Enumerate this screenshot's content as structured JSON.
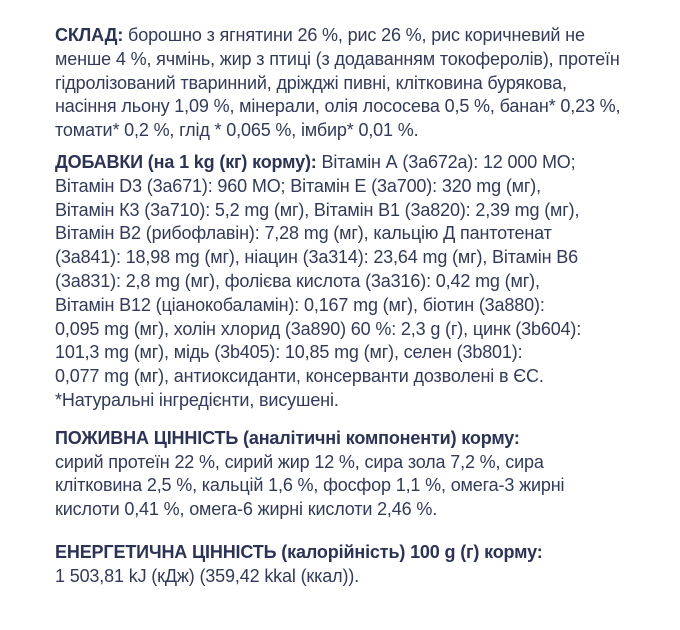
{
  "page": {
    "background_color": "#ffffff",
    "text_color": "#323a58",
    "heading_color": "#2c3354",
    "language": "uk"
  },
  "sections": [
    {
      "id": "composition",
      "heading": "СКЛАД:",
      "heading_inline": true,
      "lines": [
        "борошно з ягнятини 26 %, рис 26 %, рис коричневий не",
        "менше 4 %, ячмінь, жир з птиці (з додаванням токоферолів), протеїн",
        "гідролізований тваринний, дріжджі пивні, клітковина бурякова,",
        "насіння льону 1,09 %, мінерали, олія лососева 0,5 %, банан* 0,23 %,",
        "томати* 0,2 %, глід * 0,065 %, імбир* 0,01 %."
      ]
    },
    {
      "id": "additives",
      "heading": "ДОБАВКИ (на 1 kg (кг) корму):",
      "heading_inline": true,
      "lines": [
        "Вітамін А (3а672а): 12 000 МО;",
        "Вітамін D3 (3а671): 960 МО; Вітамін Е (3а700): 320 mg (мг),",
        "Вітамін К3 (3а710): 5,2 mg (мг), Вітамін В1 (3а820): 2,39 mg (мг),",
        "Вітамін В2 (рибофлавін): 7,28 mg (мг), кальцію Д пантотенат",
        "(3а841): 18,98 mg (мг), ніацин (3а314): 23,64 mg (мг), Вітамін В6",
        "(3а831): 2,8 mg (мг), фолієва кислота (3а316): 0,42 mg (мг),",
        "Вітамін В12 (ціанокобаламін): 0,167 mg (мг), біотин (3а880):",
        "0,095 mg (мг), холін хлорид (3а890) 60 %: 2,3 g (г), цинк (3b604):",
        "101,3 mg (мг), мідь (3b405): 10,85 mg (мг), селен (3b801):",
        "0,077 mg (мг), антиоксиданти, консерванти дозволені в ЄС.",
        "*Натуральні інгредієнти, висушені."
      ]
    },
    {
      "id": "nutritional-value",
      "heading": "ПОЖИВНА ЦІННІСТЬ (аналітичні компоненти) корму:",
      "heading_inline": false,
      "lines": [
        "сирий протеїн 22 %, сирий жир 12 %, сира зола 7,2 %, сира",
        "клітковина 2,5 %, кальцій 1,6 %, фосфор 1,1 %, омега-3 жирні",
        "кислоти 0,41 %, омега-6 жирні кислоти 2,46 %."
      ]
    },
    {
      "id": "energy-value",
      "heading": "ЕНЕРГЕТИЧНА ЦІННІСТЬ (калорійність) 100 g (г) корму:",
      "heading_inline": false,
      "lines": [
        "1 503,81 kJ (кДж) (359,42 kkal (ккал))."
      ]
    }
  ]
}
